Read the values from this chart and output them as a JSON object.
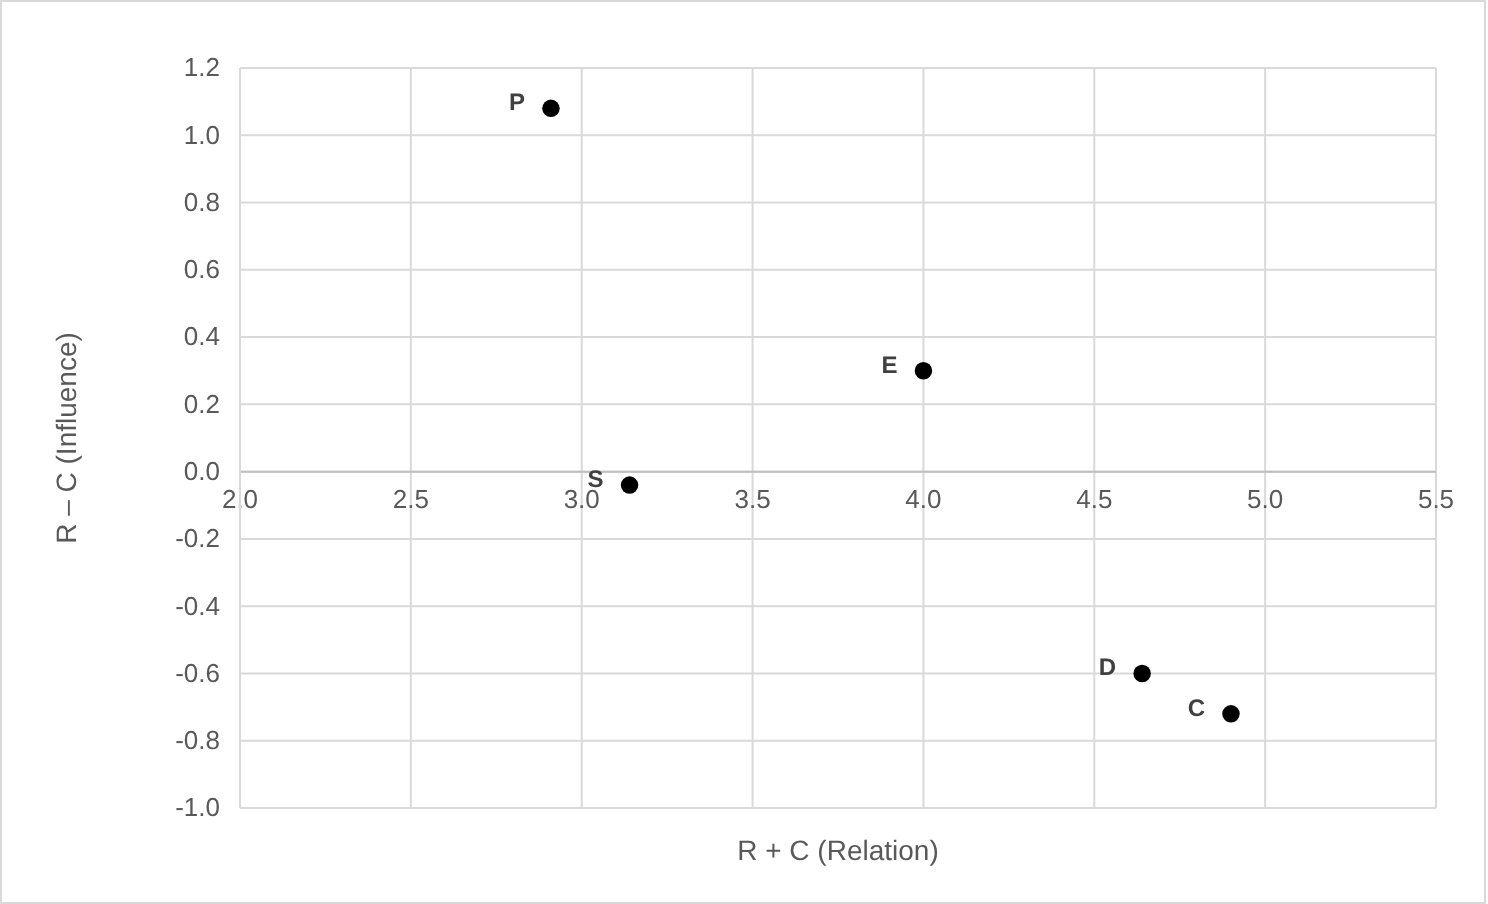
{
  "chart_data": {
    "type": "scatter",
    "xlabel": "R + C (Relation)",
    "ylabel": "R – C (Influence)",
    "x": [
      2.91,
      4.0,
      3.14,
      4.64,
      4.9
    ],
    "values": [
      1.08,
      0.3,
      -0.04,
      -0.6,
      -0.72
    ],
    "color": "#000000",
    "marker": "circle",
    "grid": true,
    "xlim": [
      2.0,
      5.5
    ],
    "xticks": [
      {
        "value": 2,
        "label": "2.0"
      },
      2.5,
      {
        "value": 3,
        "label": "3.0"
      },
      3.5,
      {
        "value": 4,
        "label": "4.0"
      },
      4.5,
      {
        "value": 5,
        "label": "5.0"
      },
      5.5
    ],
    "ylim": [
      -1.0,
      1.2
    ],
    "yticks": [
      {
        "value": -1,
        "label": "-1.0"
      },
      -0.8,
      -0.6,
      -0.4,
      -0.2,
      {
        "value": 0,
        "label": "0.0"
      },
      0.2,
      0.4,
      0.6,
      0.8,
      {
        "value": 1,
        "label": "1.0"
      },
      1.2
    ],
    "annotations": [
      {
        "text": "P",
        "x": 2.91,
        "y": 1.08
      },
      {
        "text": "E",
        "x": 4.0,
        "y": 0.3
      },
      {
        "text": "S",
        "x": 3.14,
        "y": -0.04
      },
      {
        "text": "D",
        "x": 4.64,
        "y": -0.6
      },
      {
        "text": "C",
        "x": 4.9,
        "y": -0.72
      }
    ]
  }
}
